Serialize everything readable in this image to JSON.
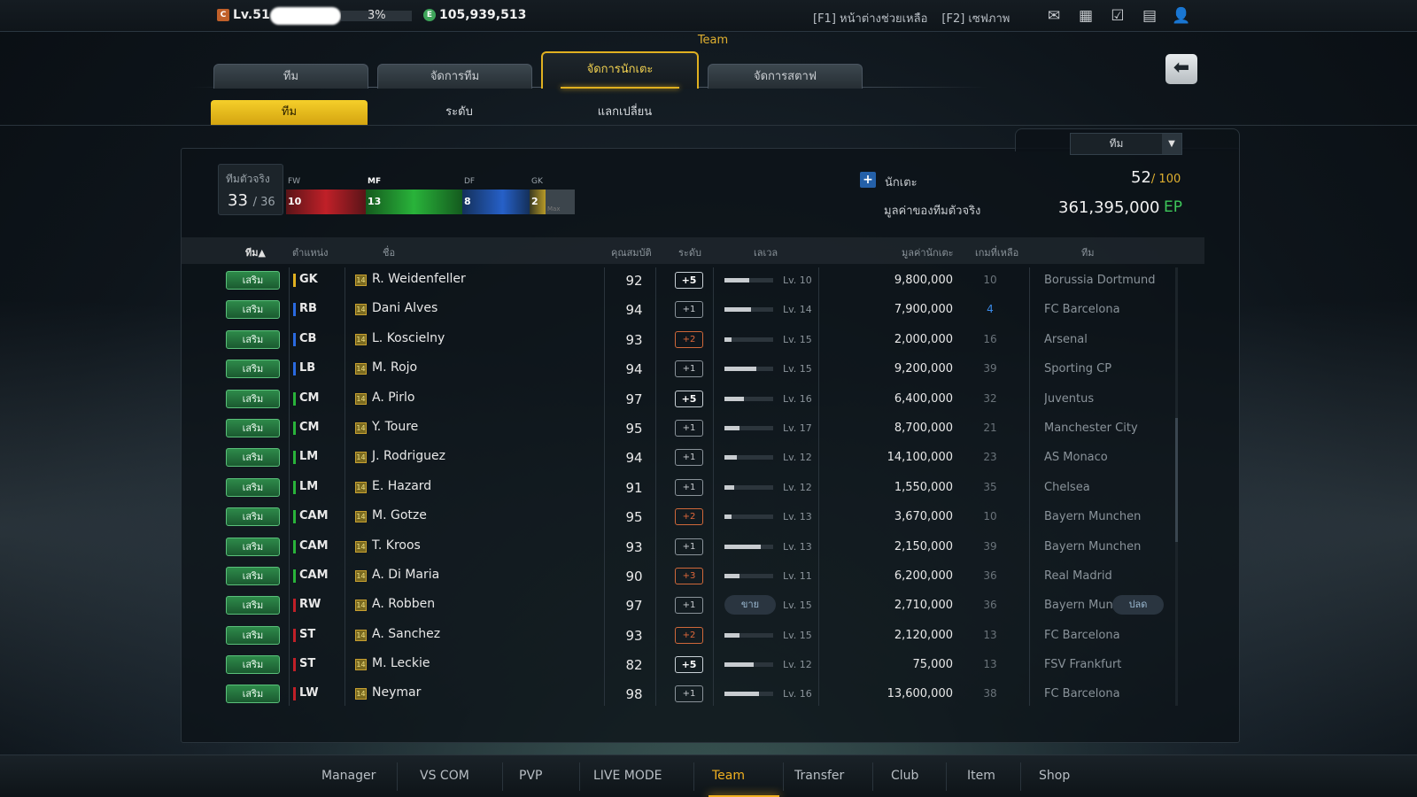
{
  "topbar": {
    "level": "Lv.51",
    "exp_percent": "3%",
    "coins": "105,939,513",
    "help": "[F1] หน้าต่างช่วยเหลือ",
    "screenshot": "[F2] เซฟภาพ"
  },
  "header": {
    "title": "Team"
  },
  "tabs": [
    {
      "label": "ทีม"
    },
    {
      "label": "จัดการทีม"
    },
    {
      "label": "จัดการนักเตะ"
    },
    {
      "label": "จัดการสตาฟ"
    }
  ],
  "subtabs": [
    {
      "label": "ทีม"
    },
    {
      "label": "ระดับ"
    },
    {
      "label": "แลกเปลี่ยน"
    }
  ],
  "filter": {
    "selected": "ทีม"
  },
  "real_team": {
    "label": "ทีมตัวจริง",
    "count": "33",
    "max": "/ 36"
  },
  "position_bar": {
    "fw_label": "FW",
    "mf_label": "MF",
    "df_label": "DF",
    "gk_label": "GK",
    "fw": "10",
    "mf": "13",
    "df": "8",
    "gk": "2",
    "max_label": "Max"
  },
  "players": {
    "label": "นักเตะ",
    "count": "52",
    "max": "/ 100"
  },
  "team_value": {
    "label": "มูลค่าของทีมตัวจริง",
    "value": "361,395,000",
    "unit": "EP"
  },
  "columns": {
    "team": "ทีม▲",
    "position": "ตำแหน่ง",
    "name": "ชื่อ",
    "ovr": "คุณสมบัติ",
    "grade": "ระดับ",
    "level": "เลเวล",
    "value": "มูลค่านักเตะ",
    "games": "เกมที่เหลือ",
    "club": "ทีม"
  },
  "row_labels": {
    "sub": "เสริม",
    "sell": "ขาย",
    "release": "ปลด",
    "season": "14"
  },
  "rows": [
    {
      "pos": "GK",
      "pos_color": "#e0b020",
      "name": "R. Weidenfeller",
      "ovr": "92",
      "grade": "+5",
      "lv": "Lv. 10",
      "lv_fill": 0.5,
      "price": "9,800,000",
      "games": "10",
      "club": "Borussia Dortmund"
    },
    {
      "pos": "RB",
      "pos_color": "#2a6ae0",
      "name": "Dani Alves",
      "ovr": "94",
      "grade": "+1",
      "lv": "Lv. 14",
      "lv_fill": 0.55,
      "price": "7,900,000",
      "games": "4",
      "club": "FC Barcelona"
    },
    {
      "pos": "CB",
      "pos_color": "#2a6ae0",
      "name": "L. Koscielny",
      "ovr": "93",
      "grade": "+2",
      "lv": "Lv. 15",
      "lv_fill": 0.15,
      "price": "2,000,000",
      "games": "16",
      "club": "Arsenal"
    },
    {
      "pos": "LB",
      "pos_color": "#2a6ae0",
      "name": "M. Rojo",
      "ovr": "94",
      "grade": "+1",
      "lv": "Lv. 15",
      "lv_fill": 0.65,
      "price": "9,200,000",
      "games": "39",
      "club": "Sporting CP"
    },
    {
      "pos": "CM",
      "pos_color": "#29b33a",
      "name": "A. Pirlo",
      "ovr": "97",
      "grade": "+5",
      "lv": "Lv. 16",
      "lv_fill": 0.4,
      "price": "6,400,000",
      "games": "32",
      "club": "Juventus"
    },
    {
      "pos": "CM",
      "pos_color": "#29b33a",
      "name": "Y. Toure",
      "ovr": "95",
      "grade": "+1",
      "lv": "Lv. 17",
      "lv_fill": 0.3,
      "price": "8,700,000",
      "games": "21",
      "club": "Manchester City"
    },
    {
      "pos": "LM",
      "pos_color": "#29b33a",
      "name": "J. Rodriguez",
      "ovr": "94",
      "grade": "+1",
      "lv": "Lv. 12",
      "lv_fill": 0.25,
      "price": "14,100,000",
      "games": "23",
      "club": "AS Monaco"
    },
    {
      "pos": "LM",
      "pos_color": "#29b33a",
      "name": "E. Hazard",
      "ovr": "91",
      "grade": "+1",
      "lv": "Lv. 12",
      "lv_fill": 0.2,
      "price": "1,550,000",
      "games": "35",
      "club": "Chelsea"
    },
    {
      "pos": "CAM",
      "pos_color": "#29b33a",
      "name": "M. Gotze",
      "ovr": "95",
      "grade": "+2",
      "lv": "Lv. 13",
      "lv_fill": 0.15,
      "price": "3,670,000",
      "games": "10",
      "club": "Bayern Munchen"
    },
    {
      "pos": "CAM",
      "pos_color": "#29b33a",
      "name": "T. Kroos",
      "ovr": "93",
      "grade": "+1",
      "lv": "Lv. 13",
      "lv_fill": 0.75,
      "price": "2,150,000",
      "games": "39",
      "club": "Bayern Munchen"
    },
    {
      "pos": "CAM",
      "pos_color": "#29b33a",
      "name": "A. Di Maria",
      "ovr": "90",
      "grade": "+3",
      "lv": "Lv. 11",
      "lv_fill": 0.3,
      "price": "6,200,000",
      "games": "36",
      "club": "Real Madrid"
    },
    {
      "pos": "RW",
      "pos_color": "#c02028",
      "name": "A. Robben",
      "ovr": "97",
      "grade": "+1",
      "lv": "Lv. 15",
      "lv_fill": 0.0,
      "price": "2,710,000",
      "games": "36",
      "club": "Bayern Munchen",
      "sell": true
    },
    {
      "pos": "ST",
      "pos_color": "#c02028",
      "name": "A. Sanchez",
      "ovr": "93",
      "grade": "+2",
      "lv": "Lv. 15",
      "lv_fill": 0.3,
      "price": "2,120,000",
      "games": "13",
      "club": "FC Barcelona"
    },
    {
      "pos": "ST",
      "pos_color": "#c02028",
      "name": "M. Leckie",
      "ovr": "82",
      "grade": "+5",
      "lv": "Lv. 12",
      "lv_fill": 0.6,
      "price": "75,000",
      "games": "13",
      "club": "FSV Frankfurt"
    },
    {
      "pos": "LW",
      "pos_color": "#c02028",
      "name": "Neymar",
      "ovr": "98",
      "grade": "+1",
      "lv": "Lv. 16",
      "lv_fill": 0.7,
      "price": "13,600,000",
      "games": "38",
      "club": "FC Barcelona"
    }
  ],
  "bottom_nav": [
    {
      "label": "Manager"
    },
    {
      "label": "VS COM"
    },
    {
      "label": "PVP"
    },
    {
      "label": "LIVE MODE"
    },
    {
      "label": "Team",
      "active": true
    },
    {
      "label": "Transfer"
    },
    {
      "label": "Club"
    },
    {
      "label": "Item"
    },
    {
      "label": "Shop"
    }
  ]
}
